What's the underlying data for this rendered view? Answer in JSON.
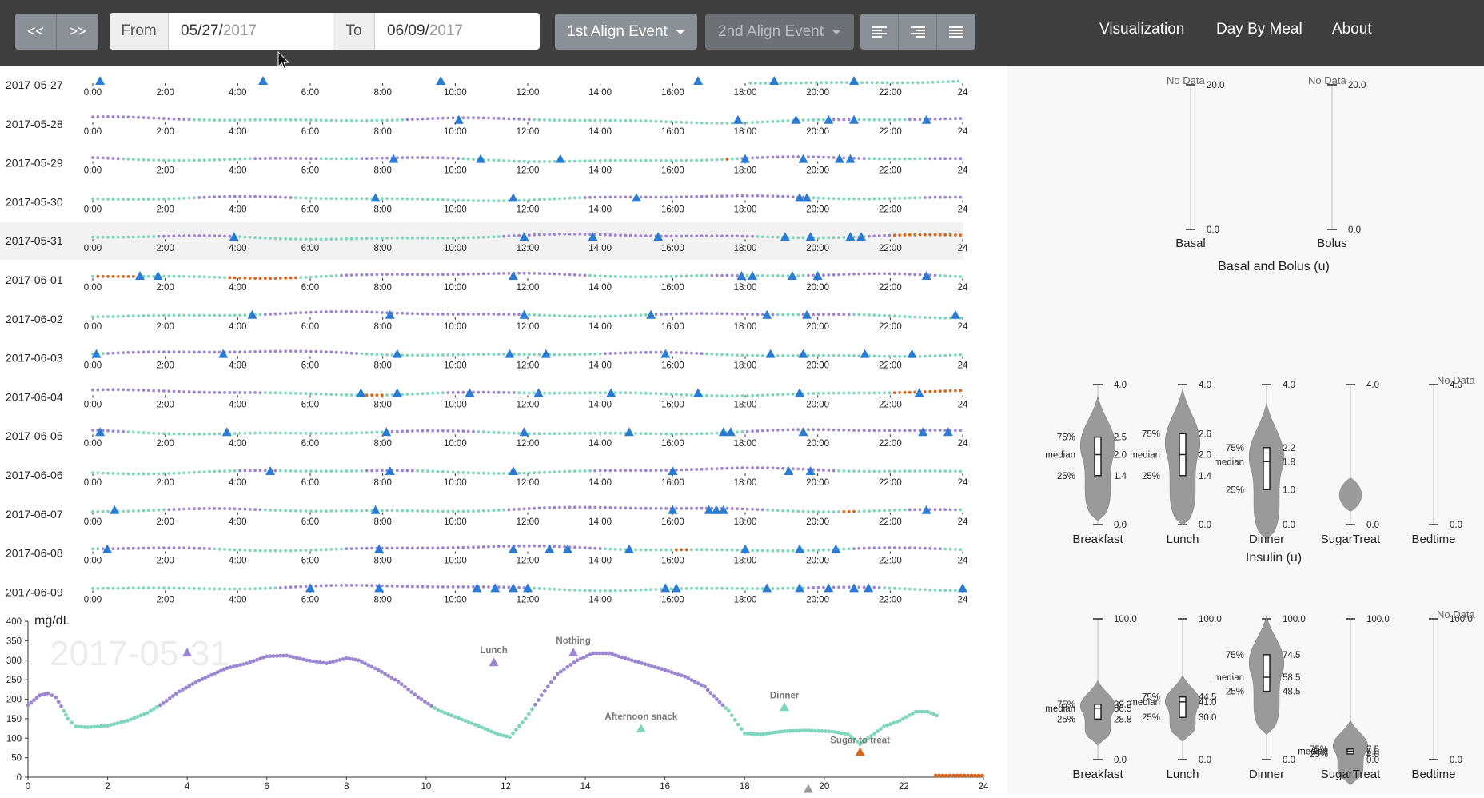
{
  "toolbar": {
    "prev_label": "<<",
    "next_label": ">>",
    "from_label": "From",
    "from_value_md": "05/27/",
    "from_value_year": "2017",
    "to_label": "To",
    "to_value_md": "06/09/",
    "to_value_year": "2017",
    "align1_label": "1st Align Event",
    "align2_label": "2nd Align Event",
    "align_icons": [
      "align-left-icon",
      "align-right-icon",
      "align-justify-icon"
    ]
  },
  "nav": {
    "visualization": "Visualization",
    "day_by_meal": "Day By Meal",
    "about": "About"
  },
  "colors": {
    "topbar": "#3f3f3f",
    "in_range": "#7fd6bd",
    "high": "#9b86d1",
    "low": "#d9661f",
    "event": "#2a7bd4",
    "violin": "#9a9a9a",
    "selected_row": "#f2f2f2"
  },
  "days": [
    {
      "date": "2017-05-27"
    },
    {
      "date": "2017-05-28"
    },
    {
      "date": "2017-05-29"
    },
    {
      "date": "2017-05-30"
    },
    {
      "date": "2017-05-31",
      "selected": true
    },
    {
      "date": "2017-06-01"
    },
    {
      "date": "2017-06-02"
    },
    {
      "date": "2017-06-03"
    },
    {
      "date": "2017-06-04"
    },
    {
      "date": "2017-06-05"
    },
    {
      "date": "2017-06-06"
    },
    {
      "date": "2017-06-07"
    },
    {
      "date": "2017-06-08"
    },
    {
      "date": "2017-06-09"
    }
  ],
  "hour_ticks": [
    "0:00",
    "2:00",
    "4:00",
    "6:00",
    "8:00",
    "10:00",
    "12:00",
    "14:00",
    "16:00",
    "18:00",
    "20:00",
    "22:00",
    "24"
  ],
  "day_events": [
    [
      0.2,
      4.7,
      9.6,
      16.7,
      18.8,
      21.0
    ],
    [
      10.1,
      17.8,
      19.4,
      20.3,
      21.0,
      23.0
    ],
    [
      8.3,
      10.7,
      12.9,
      18.0,
      19.6,
      20.6,
      20.9
    ],
    [
      7.8,
      11.6,
      15.0,
      19.5,
      19.7
    ],
    [
      3.9,
      11.9,
      13.8,
      15.6,
      19.1,
      19.8,
      20.9,
      21.2
    ],
    [
      1.3,
      1.8,
      11.6,
      17.9,
      18.2,
      19.3,
      20.0,
      23.0
    ],
    [
      4.4,
      8.2,
      11.9,
      15.4,
      18.6,
      19.7,
      23.8
    ],
    [
      0.1,
      3.6,
      8.4,
      11.5,
      12.5,
      15.8,
      18.7,
      19.6,
      21.3,
      22.6
    ],
    [
      7.4,
      8.4,
      10.4,
      12.3,
      14.3,
      16.7,
      19.5,
      22.8
    ],
    [
      0.2,
      3.7,
      8.1,
      11.9,
      14.8,
      17.4,
      17.6,
      19.6,
      22.9,
      23.6
    ],
    [
      4.9,
      8.2,
      11.6,
      16.0,
      19.2,
      19.8
    ],
    [
      0.6,
      7.8,
      16.0,
      17.0,
      17.2,
      17.4,
      23.0
    ],
    [
      0.4,
      7.9,
      11.6,
      12.6,
      13.1,
      14.8,
      18.0,
      19.5,
      20.5
    ],
    [
      6.0,
      7.9,
      10.6,
      11.1,
      11.6,
      12.0,
      15.8,
      16.1,
      18.6,
      19.5,
      20.3,
      21.0,
      21.4,
      24.0
    ]
  ],
  "detail": {
    "date_watermark": "2017-05-31",
    "ylabel": "mg/dL",
    "y_ticks": [
      "400",
      "350",
      "300",
      "250",
      "200",
      "150",
      "100",
      "50",
      "0"
    ],
    "x_ticks": [
      "0",
      "2",
      "4",
      "6",
      "8",
      "10",
      "12",
      "14",
      "16",
      "18",
      "20",
      "22",
      "24"
    ],
    "events": [
      {
        "label": "",
        "x": 4.0,
        "y": 320,
        "color": "high"
      },
      {
        "label": "Lunch",
        "x": 11.7,
        "y": 295,
        "color": "high"
      },
      {
        "label": "Nothing",
        "x": 13.7,
        "y": 320,
        "color": "high"
      },
      {
        "label": "Afternoon snack",
        "x": 15.4,
        "y": 125,
        "color": "in_range"
      },
      {
        "label": "Dinner",
        "x": 19.0,
        "y": 180,
        "color": "in_range"
      },
      {
        "label": "Sugar to treat",
        "x": 20.9,
        "y": 65,
        "color": "low"
      },
      {
        "label": "",
        "x": 19.6,
        "y": -30,
        "color": "violin"
      }
    ],
    "glucose": [
      [
        0,
        185
      ],
      [
        0.3,
        210
      ],
      [
        0.5,
        215
      ],
      [
        0.7,
        205
      ],
      [
        0.9,
        170
      ],
      [
        1.0,
        150
      ],
      [
        1.2,
        130
      ],
      [
        1.5,
        128
      ],
      [
        2.0,
        132
      ],
      [
        2.5,
        145
      ],
      [
        3.0,
        165
      ],
      [
        3.4,
        190
      ],
      [
        3.8,
        220
      ],
      [
        4.3,
        248
      ],
      [
        5.0,
        280
      ],
      [
        5.5,
        292
      ],
      [
        6.0,
        310
      ],
      [
        6.5,
        312
      ],
      [
        7.0,
        300
      ],
      [
        7.5,
        292
      ],
      [
        8.0,
        305
      ],
      [
        8.3,
        300
      ],
      [
        8.8,
        275
      ],
      [
        9.3,
        245
      ],
      [
        9.8,
        205
      ],
      [
        10.3,
        172
      ],
      [
        10.9,
        148
      ],
      [
        11.4,
        128
      ],
      [
        11.8,
        110
      ],
      [
        12.1,
        103
      ],
      [
        12.5,
        150
      ],
      [
        12.9,
        210
      ],
      [
        13.3,
        265
      ],
      [
        13.8,
        300
      ],
      [
        14.2,
        318
      ],
      [
        14.6,
        318
      ],
      [
        15.0,
        305
      ],
      [
        15.5,
        290
      ],
      [
        16.0,
        275
      ],
      [
        16.5,
        258
      ],
      [
        17.0,
        232
      ],
      [
        17.3,
        200
      ],
      [
        17.6,
        170
      ],
      [
        18.0,
        112
      ],
      [
        18.4,
        110
      ],
      [
        19.0,
        118
      ],
      [
        19.6,
        120
      ],
      [
        20.2,
        117
      ],
      [
        20.6,
        110
      ],
      [
        20.9,
        85
      ],
      [
        21.1,
        100
      ],
      [
        21.5,
        130
      ],
      [
        21.9,
        145
      ],
      [
        22.3,
        168
      ],
      [
        22.6,
        168
      ],
      [
        22.9,
        155
      ]
    ],
    "low_run": [
      22.8,
      24.0
    ]
  },
  "right": {
    "basal_bolus": {
      "title": "Basal and Bolus (u)",
      "cols": [
        {
          "name": "Basal",
          "nodata": "No Data",
          "top": "20.0",
          "bottom": "0.0"
        },
        {
          "name": "Bolus",
          "nodata": "No Data",
          "top": "20.0",
          "bottom": "0.0"
        }
      ]
    },
    "insulin": {
      "title": "Insulin (u)",
      "cols": [
        {
          "name": "Breakfast",
          "top": "4.0",
          "q75": "2.5",
          "median": "2.0",
          "q25": "1.4",
          "bottom": "0.0"
        },
        {
          "name": "Lunch",
          "top": "4.0",
          "q75": "2.6",
          "median": "2.0",
          "q25": "1.4",
          "bottom": "0.0"
        },
        {
          "name": "Dinner",
          "top": "4.0",
          "q75": "2.2",
          "median": "1.8",
          "q25": "1.0",
          "bottom": "0.0"
        },
        {
          "name": "SugarTreat",
          "top": "4.0",
          "bottom": "0.0"
        },
        {
          "name": "Bedtime",
          "nodata": "No Data",
          "top": "4.0",
          "bottom": "0.0"
        }
      ]
    },
    "carbs": {
      "cols": [
        {
          "name": "Breakfast",
          "top": "100.0",
          "q75": "39.3",
          "median": "36.5",
          "q25": "28.8",
          "bottom": "0.0"
        },
        {
          "name": "Lunch",
          "top": "100.0",
          "q75": "44.5",
          "median": "41.0",
          "q25": "30.0",
          "bottom": "0.0"
        },
        {
          "name": "Dinner",
          "top": "100.0",
          "q75": "74.5",
          "median": "58.5",
          "q25": "48.5",
          "bottom": "0.0"
        },
        {
          "name": "SugarTreat",
          "top": "100.0",
          "q75": "7.5",
          "median": "6.0",
          "q25": "4.0",
          "bottom": "0.0"
        },
        {
          "name": "Bedtime",
          "nodata": "No Data",
          "top": "100.0",
          "bottom": "0.0"
        }
      ]
    },
    "stat_labels": {
      "q75": "75%",
      "median": "median",
      "q25": "25%"
    }
  }
}
